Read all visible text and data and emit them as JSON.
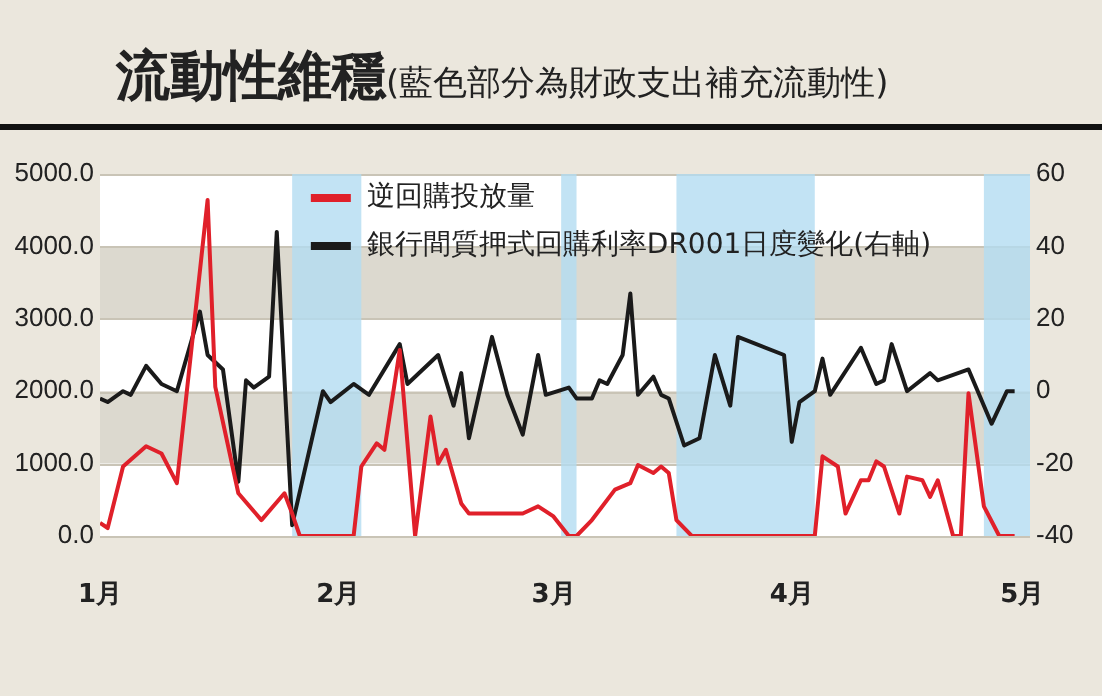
{
  "chart_data": {
    "type": "line",
    "title": "流動性維穩",
    "subtitle": "(藍色部分為財政支出補充流動性)",
    "xlim": [
      "--01-01",
      "--05-02"
    ],
    "xticks": [
      {
        "value": "--01-01",
        "label": "1月"
      },
      {
        "value": "--02-01",
        "label": "2月"
      },
      {
        "value": "--03-01",
        "label": "3月"
      },
      {
        "value": "--04-01",
        "label": "4月"
      },
      {
        "value": "--05-01",
        "label": "5月"
      }
    ],
    "ylim": [
      0,
      5000
    ],
    "yticks": [
      {
        "value": 0,
        "label": "0.0"
      },
      {
        "value": 1000,
        "label": "1000.0"
      },
      {
        "value": 2000,
        "label": "2000.0"
      },
      {
        "value": 3000,
        "label": "3000.0"
      },
      {
        "value": 4000,
        "label": "4000.0"
      },
      {
        "value": 5000,
        "label": "5000.0"
      }
    ],
    "y2lim": [
      -40,
      60
    ],
    "y2ticks": [
      -40,
      -20,
      0,
      20,
      40,
      60
    ],
    "grid": "y",
    "legend": "top",
    "marker": "none",
    "line_style": "solid",
    "bands": [
      {
        "axis": "x",
        "from": "--01-26",
        "to": "--02-04",
        "color": "#b3dcf1"
      },
      {
        "axis": "x",
        "from": "--03-02",
        "to": "--03-04",
        "color": "#b3dcf1"
      },
      {
        "axis": "x",
        "from": "--03-17",
        "to": "--04-04",
        "color": "#b3dcf1"
      },
      {
        "axis": "x",
        "from": "--04-26",
        "to": "--05-02",
        "color": "#b3dcf1"
      }
    ],
    "series": [
      {
        "name": "逆回購投放量",
        "color": "#e0202a",
        "type": "line",
        "x": [
          "--01-01",
          "--01-02",
          "--01-04",
          "--01-07",
          "--01-09",
          "--01-11",
          "--01-15",
          "--01-16",
          "--01-19",
          "--01-22",
          "--01-25",
          "--01-26",
          "--01-27",
          "--02-03",
          "--02-04",
          "--02-06",
          "--02-07",
          "--02-09",
          "--02-11",
          "--02-13",
          "--02-14",
          "--02-15",
          "--02-17",
          "--02-18",
          "--02-25",
          "--02-27",
          "--03-01",
          "--03-03",
          "--03-04",
          "--03-06",
          "--03-09",
          "--03-11",
          "--03-12",
          "--03-14",
          "--03-15",
          "--03-16",
          "--03-17",
          "--03-19",
          "--04-04",
          "--04-05",
          "--04-07",
          "--04-08",
          "--04-10",
          "--04-11",
          "--04-12",
          "--04-13",
          "--04-15",
          "--04-16",
          "--04-18",
          "--04-19",
          "--04-20",
          "--04-22",
          "--04-23",
          "--04-24",
          "--04-26",
          "--04-28",
          "--04-30"
        ],
        "values": [
          180,
          110,
          960,
          1240,
          1140,
          730,
          4640,
          2060,
          590,
          220,
          590,
          310,
          0,
          0,
          960,
          1280,
          1190,
          2570,
          0,
          1650,
          1000,
          1190,
          450,
          310,
          310,
          410,
          270,
          0,
          0,
          220,
          640,
          730,
          980,
          870,
          960,
          870,
          220,
          0,
          0,
          1100,
          960,
          310,
          770,
          770,
          1030,
          960,
          310,
          820,
          770,
          540,
          770,
          0,
          0,
          1970,
          410,
          0,
          0
        ]
      },
      {
        "name": "銀行間質押式回購利率DR001日度變化(右軸)",
        "color": "#1a1a1a",
        "type": "line",
        "axis": "y2",
        "x": [
          "--01-01",
          "--01-02",
          "--01-04",
          "--01-05",
          "--01-07",
          "--01-09",
          "--01-11",
          "--01-14",
          "--01-15",
          "--01-17",
          "--01-19",
          "--01-20",
          "--01-21",
          "--01-23",
          "--01-24",
          "--01-26",
          "--01-30",
          "--01-31",
          "--02-03",
          "--02-05",
          "--02-09",
          "--02-10",
          "--02-14",
          "--02-16",
          "--02-17",
          "--02-18",
          "--02-21",
          "--02-23",
          "--02-25",
          "--02-27",
          "--02-28",
          "--03-03",
          "--03-04",
          "--03-06",
          "--03-07",
          "--03-08",
          "--03-10",
          "--03-11",
          "--03-12",
          "--03-14",
          "--03-15",
          "--03-16",
          "--03-18",
          "--03-20",
          "--03-22",
          "--03-24",
          "--03-25",
          "--03-31",
          "--04-01",
          "--04-02",
          "--04-04",
          "--04-05",
          "--04-06",
          "--04-10",
          "--04-12",
          "--04-13",
          "--04-14",
          "--04-16",
          "--04-19",
          "--04-20",
          "--04-24",
          "--04-27",
          "--04-29",
          "--04-30"
        ],
        "values": [
          -2,
          -3,
          0,
          -1,
          7,
          2,
          0,
          22,
          10,
          6,
          -25,
          3,
          1,
          4,
          44,
          -37,
          0,
          -3,
          2,
          -1,
          13,
          2,
          10,
          -4,
          5,
          -13,
          15,
          -1,
          -12,
          10,
          -1,
          1,
          -2,
          -2,
          3,
          2,
          10,
          27,
          -1,
          4,
          -1,
          -2,
          -15,
          -13,
          10,
          -4,
          15,
          10,
          -14,
          -3,
          0,
          9,
          -1,
          12,
          2,
          3,
          13,
          0,
          5,
          3,
          6,
          -9,
          0,
          0
        ]
      }
    ]
  }
}
